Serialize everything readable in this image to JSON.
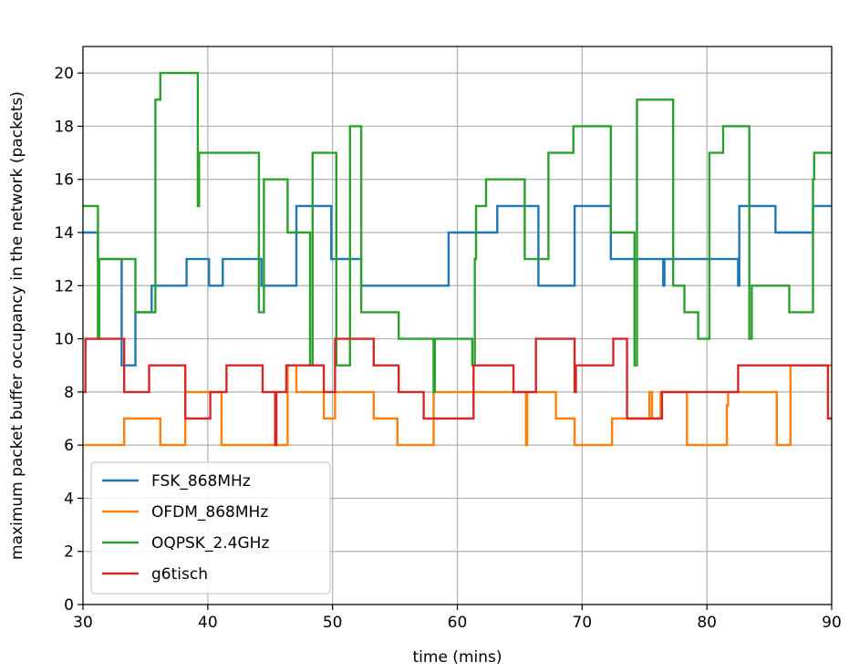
{
  "chart_data": {
    "type": "line",
    "step": "post",
    "xlabel": "time (mins)",
    "ylabel": "maximum packet buffer occupancy in the network (packets)",
    "xlim": [
      30,
      90
    ],
    "ylim": [
      0,
      21
    ],
    "xticks": [
      30,
      40,
      50,
      60,
      70,
      80,
      90
    ],
    "yticks": [
      0,
      2,
      4,
      6,
      8,
      10,
      12,
      14,
      16,
      18,
      20
    ],
    "grid": true,
    "legend_position": "lower-left",
    "series": [
      {
        "name": "FSK_868MHz",
        "color": "#1f77b4",
        "x": [
          30,
          31.2,
          33,
          33.1,
          34.2,
          34.9,
          35.3,
          35.5,
          36.8,
          38.3,
          40.1,
          41.2,
          44.1,
          44.3,
          46.1,
          46.5,
          47.1,
          49.9,
          50.1,
          52.1,
          52.3,
          59.3,
          59.4,
          59.5,
          61.2,
          61.3,
          63.2,
          65.2,
          66.3,
          66.5,
          69.4,
          72.3,
          72.5,
          76.4,
          76.5,
          76.6,
          82.3,
          82.5,
          82.6,
          85.5,
          87.4,
          88.5,
          90
        ],
        "y": [
          14,
          13,
          13,
          9,
          11,
          11,
          11,
          12,
          12,
          13,
          12,
          13,
          13,
          12,
          12,
          12,
          15,
          13,
          13,
          13,
          12,
          14,
          14,
          14,
          14,
          14,
          15,
          15,
          15,
          12,
          15,
          13,
          13,
          13,
          12,
          13,
          13,
          12,
          15,
          14,
          14,
          15,
          15
        ]
      },
      {
        "name": "OFDM_868MHz",
        "color": "#ff7f0e",
        "x": [
          30,
          33.3,
          36.2,
          38.2,
          40.2,
          41.1,
          43.2,
          45.4,
          46.4,
          47.1,
          49.2,
          49.3,
          50.2,
          53.3,
          55.2,
          58.1,
          59.3,
          61.2,
          61.3,
          64.5,
          65.5,
          65.6,
          67.9,
          69.4,
          71.4,
          72.4,
          72.5,
          75.4,
          75.6,
          76.3,
          78.4,
          80.6,
          81.6,
          81.7,
          85.4,
          85.6,
          86.7,
          90
        ],
        "y": [
          6,
          7,
          6,
          8,
          8,
          6,
          6,
          6,
          9,
          8,
          8,
          7,
          8,
          7,
          6,
          8,
          8,
          8,
          8,
          8,
          6,
          8,
          7,
          6,
          6,
          7,
          7,
          8,
          7,
          8,
          6,
          6,
          7.5,
          8,
          8,
          6,
          9,
          9
        ]
      },
      {
        "name": "OQPSK_2.4GHz",
        "color": "#2ca02c",
        "x": [
          30,
          31.2,
          31.3,
          34.2,
          35.8,
          36.2,
          36.6,
          39.2,
          39.3,
          44.1,
          44.3,
          44.5,
          46.4,
          48.2,
          48.4,
          50.3,
          51.4,
          52.3,
          55.3,
          58.1,
          58.2,
          61.2,
          61.4,
          61.5,
          62.3,
          65.2,
          65.4,
          66.3,
          67.3,
          69.3,
          70.3,
          72.3,
          72.5,
          74.2,
          74.4,
          77.3,
          77.5,
          78.2,
          79.3,
          80.2,
          81.3,
          83.4,
          83.6,
          86.6,
          88.5,
          88.6,
          90
        ],
        "y": [
          15,
          10,
          13,
          11,
          19,
          20,
          20,
          15,
          17,
          11,
          11,
          16,
          14,
          9,
          17,
          9,
          18,
          11,
          10,
          8,
          10,
          9,
          13,
          15,
          16,
          16,
          13,
          13,
          17,
          18,
          18,
          14,
          14,
          9,
          19,
          12,
          12,
          11,
          10,
          17,
          18,
          10,
          12,
          11,
          16,
          17,
          17
        ]
      },
      {
        "name": "g6tisch",
        "color": "#d62728",
        "x": [
          30,
          30.2,
          33.3,
          35.3,
          38.2,
          39.1,
          40.2,
          41.5,
          44.4,
          45.4,
          45.5,
          46.3,
          49.3,
          50.2,
          53.3,
          55.3,
          57.3,
          59.1,
          61.3,
          64.5,
          66.3,
          69.4,
          69.5,
          70.4,
          72.5,
          73.6,
          76.4,
          79.3,
          82.5,
          89.7,
          90
        ],
        "y": [
          8,
          10,
          8,
          9,
          7,
          7,
          8,
          9,
          8,
          6,
          8,
          9,
          8,
          10,
          9,
          8,
          7,
          7,
          9,
          8,
          10,
          8,
          9,
          9,
          10,
          7,
          8,
          8,
          9,
          7,
          7
        ]
      }
    ]
  }
}
